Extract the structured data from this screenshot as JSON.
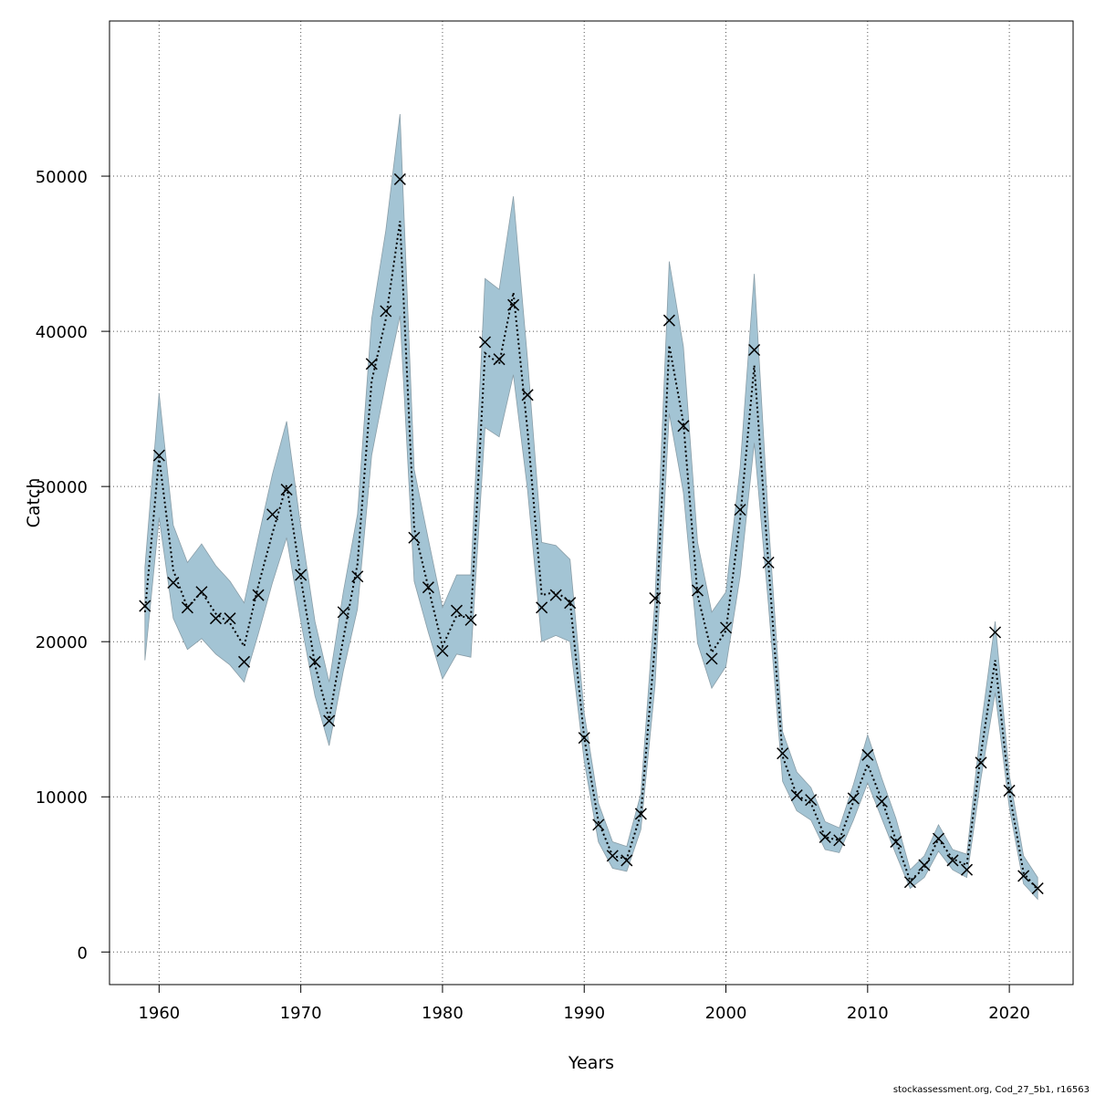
{
  "chart_data": {
    "type": "line",
    "xlabel": "Years",
    "ylabel": "Catch",
    "xlim": [
      1956.5,
      2024.5
    ],
    "ylim": [
      -2100,
      60000
    ],
    "xticks": [
      1960,
      1970,
      1980,
      1990,
      2000,
      2010,
      2020
    ],
    "yticks": [
      0,
      10000,
      20000,
      30000,
      40000,
      50000
    ],
    "grid": true,
    "credit": "stockassessment.org, Cod_27_5b1, r16563",
    "colors": {
      "band": "#a3c4d4",
      "band_stroke": "#8a9ea8",
      "line": "#000000",
      "grid": "#555555"
    },
    "series": [
      {
        "name": "Observed catch",
        "marker": "x",
        "x": [
          1959,
          1960,
          1961,
          1962,
          1963,
          1964,
          1965,
          1966,
          1967,
          1968,
          1969,
          1970,
          1971,
          1972,
          1973,
          1974,
          1975,
          1976,
          1977,
          1978,
          1979,
          1980,
          1981,
          1982,
          1983,
          1984,
          1985,
          1986,
          1987,
          1988,
          1989,
          1990,
          1991,
          1992,
          1993,
          1994,
          1995,
          1996,
          1997,
          1998,
          1999,
          2000,
          2001,
          2002,
          2003,
          2004,
          2005,
          2006,
          2007,
          2008,
          2009,
          2010,
          2011,
          2012,
          2013,
          2014,
          2015,
          2016,
          2017,
          2018,
          2019,
          2020,
          2021,
          2022
        ],
        "values": [
          22300,
          32000,
          23800,
          22200,
          23200,
          21500,
          21500,
          18700,
          23000,
          28200,
          29800,
          24300,
          18700,
          14900,
          21900,
          24200,
          37900,
          41300,
          49800,
          26700,
          23500,
          19400,
          22000,
          21400,
          39300,
          38200,
          41700,
          35900,
          22200,
          23000,
          22500,
          13800,
          8200,
          6200,
          5900,
          8900,
          22800,
          40700,
          33900,
          23300,
          18900,
          20900,
          28500,
          38800,
          25100,
          12800,
          10100,
          9800,
          7400,
          7200,
          9900,
          12700,
          9700,
          7100,
          4500,
          5600,
          7300,
          5900,
          5300,
          12200,
          20600,
          10400,
          4900,
          4100
        ]
      },
      {
        "name": "Estimated catch",
        "style": "dotted",
        "x": [
          1959,
          1960,
          1961,
          1962,
          1963,
          1964,
          1965,
          1966,
          1967,
          1968,
          1969,
          1970,
          1971,
          1972,
          1973,
          1974,
          1975,
          1976,
          1977,
          1978,
          1979,
          1980,
          1981,
          1982,
          1983,
          1984,
          1985,
          1986,
          1987,
          1988,
          1989,
          1990,
          1991,
          1992,
          1993,
          1994,
          1995,
          1996,
          1997,
          1998,
          1999,
          2000,
          2001,
          2002,
          2003,
          2004,
          2005,
          2006,
          2007,
          2008,
          2009,
          2010,
          2011,
          2012,
          2013,
          2014,
          2015,
          2016,
          2017,
          2018,
          2019,
          2020,
          2021,
          2022
        ],
        "values": [
          21900,
          31900,
          24600,
          22200,
          23200,
          21800,
          21200,
          19700,
          23600,
          27000,
          30100,
          24100,
          18500,
          15000,
          20200,
          25000,
          36800,
          40800,
          47100,
          27300,
          23500,
          19700,
          21700,
          21500,
          38600,
          37900,
          42500,
          33600,
          23000,
          23200,
          22600,
          13800,
          8400,
          6200,
          6000,
          8900,
          19900,
          39100,
          34100,
          23000,
          19300,
          20700,
          27900,
          37800,
          25000,
          12600,
          10100,
          9600,
          7400,
          7200,
          9700,
          12100,
          9800,
          7200,
          4600,
          5400,
          7300,
          6000,
          5600,
          12800,
          18800,
          10300,
          5100,
          4000
        ]
      },
      {
        "name": "Confidence band upper",
        "x": [
          1959,
          1960,
          1961,
          1962,
          1963,
          1964,
          1965,
          1966,
          1967,
          1968,
          1969,
          1970,
          1971,
          1972,
          1973,
          1974,
          1975,
          1976,
          1977,
          1978,
          1979,
          1980,
          1981,
          1982,
          1983,
          1984,
          1985,
          1986,
          1987,
          1988,
          1989,
          1990,
          1991,
          1992,
          1993,
          1994,
          1995,
          1996,
          1997,
          1998,
          1999,
          2000,
          2001,
          2002,
          2003,
          2004,
          2005,
          2006,
          2007,
          2008,
          2009,
          2010,
          2011,
          2012,
          2013,
          2014,
          2015,
          2016,
          2017,
          2018,
          2019,
          2020,
          2021,
          2022
        ],
        "values": [
          24800,
          36000,
          27500,
          25100,
          26300,
          24900,
          23900,
          22500,
          26700,
          30800,
          34200,
          27400,
          21300,
          17400,
          23200,
          28200,
          40800,
          46500,
          54000,
          31100,
          26600,
          22200,
          24300,
          24300,
          43400,
          42700,
          48700,
          38200,
          26400,
          26200,
          25300,
          15400,
          9600,
          7100,
          6800,
          10200,
          22800,
          44500,
          39000,
          26400,
          21900,
          23200,
          31200,
          43700,
          27800,
          14200,
          11600,
          10600,
          8400,
          8000,
          10800,
          14000,
          11200,
          8600,
          5300,
          6200,
          8200,
          6600,
          6300,
          14500,
          21300,
          11400,
          6200,
          4800
        ]
      },
      {
        "name": "Confidence band lower",
        "x": [
          1959,
          1960,
          1961,
          1962,
          1963,
          1964,
          1965,
          1966,
          1967,
          1968,
          1969,
          1970,
          1971,
          1972,
          1973,
          1974,
          1975,
          1976,
          1977,
          1978,
          1979,
          1980,
          1981,
          1982,
          1983,
          1984,
          1985,
          1986,
          1987,
          1988,
          1989,
          1990,
          1991,
          1992,
          1993,
          1994,
          1995,
          1996,
          1997,
          1998,
          1999,
          2000,
          2001,
          2002,
          2003,
          2004,
          2005,
          2006,
          2007,
          2008,
          2009,
          2010,
          2011,
          2012,
          2013,
          2014,
          2015,
          2016,
          2017,
          2018,
          2019,
          2020,
          2021,
          2022
        ],
        "values": [
          18800,
          28000,
          21500,
          19500,
          20200,
          19200,
          18500,
          17400,
          20500,
          23800,
          26700,
          21300,
          16500,
          13300,
          18100,
          22100,
          32000,
          36700,
          41000,
          23900,
          20600,
          17600,
          19200,
          19000,
          33800,
          33200,
          37200,
          29800,
          20000,
          20400,
          20000,
          12300,
          7100,
          5400,
          5200,
          7900,
          17200,
          34700,
          29600,
          19900,
          17000,
          18400,
          24200,
          32800,
          22400,
          11000,
          9100,
          8500,
          6600,
          6400,
          8500,
          10900,
          8600,
          6300,
          4100,
          4800,
          6500,
          5300,
          4800,
          11200,
          16700,
          9300,
          4400,
          3400
        ]
      }
    ]
  }
}
